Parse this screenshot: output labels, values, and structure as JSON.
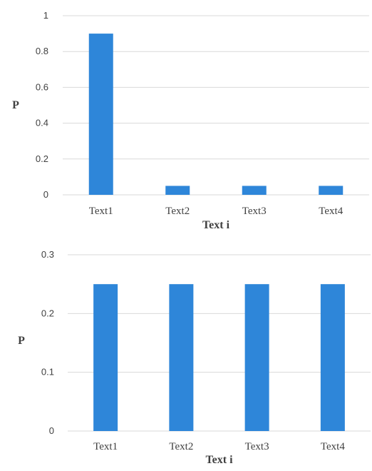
{
  "chart_data": [
    {
      "type": "bar",
      "categories": [
        "Text1",
        "Text2",
        "Text3",
        "Text4"
      ],
      "values": [
        0.9,
        0.05,
        0.05,
        0.05
      ],
      "ylim": [
        0,
        1
      ],
      "yticks": [
        "0",
        "0.2",
        "0.4",
        "0.6",
        "0.8",
        "1"
      ],
      "xlabel": "Text i",
      "ylabel": "P",
      "grid": true,
      "bar_color": "#2e86d9"
    },
    {
      "type": "bar",
      "categories": [
        "Text1",
        "Text2",
        "Text3",
        "Text4"
      ],
      "values": [
        0.25,
        0.25,
        0.25,
        0.25
      ],
      "ylim": [
        0,
        0.3
      ],
      "yticks": [
        "0",
        "0.1",
        "0.2",
        "0.3"
      ],
      "xlabel": "Text i",
      "ylabel": "P",
      "grid": true,
      "bar_color": "#2e86d9"
    }
  ]
}
